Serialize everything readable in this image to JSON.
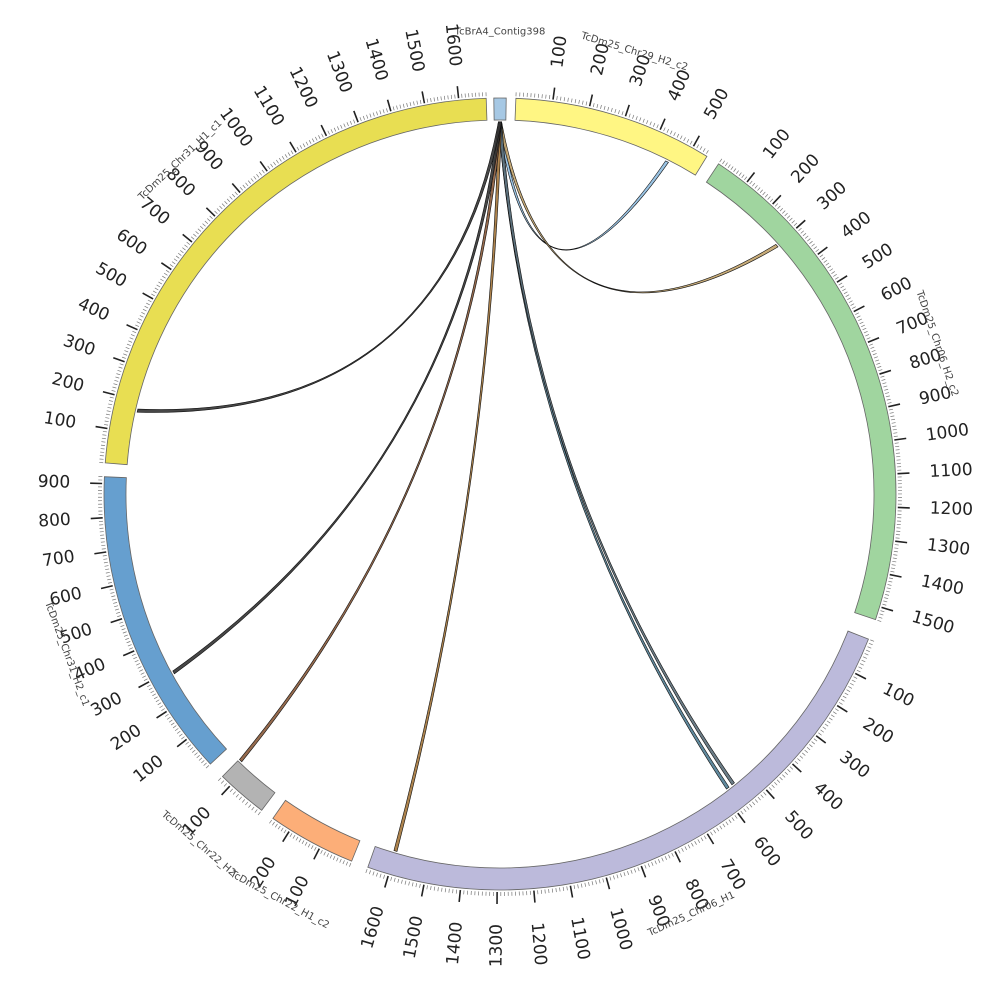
{
  "segments": [
    {
      "id": "contig398",
      "name": "TcBrA4_Contig398",
      "length": 20,
      "color": "#a6c8e4"
    },
    {
      "id": "chr29h2c2",
      "name": "TcDm25_Chr29_H2_c2",
      "length": 545,
      "color": "#fff683",
      "ticks": [
        "100",
        "200",
        "300",
        "400",
        "500"
      ]
    },
    {
      "id": "chr06h2c2",
      "name": "TcDm25_Chr06_H2_c2",
      "length": 1540,
      "color": "#a0d59f",
      "ticks": [
        "100",
        "200",
        "300",
        "400",
        "500",
        "600",
        "700",
        "800",
        "900",
        "1000",
        "1100",
        "1200",
        "1300",
        "1400",
        "1500"
      ]
    },
    {
      "id": "chr06h1",
      "name": "TcDm25_Chr06_H1",
      "length": 1660,
      "color": "#bcbadb",
      "ticks": [
        "100",
        "200",
        "300",
        "400",
        "500",
        "600",
        "700",
        "800",
        "900",
        "1000",
        "1100",
        "1200",
        "1300",
        "1400",
        "1500",
        "1600"
      ]
    },
    {
      "id": "chr22h1c2",
      "name": "TcDm25_Chr22_H1_c2",
      "length": 260,
      "color": "#fcae78",
      "ticks": [
        "100",
        "200"
      ]
    },
    {
      "id": "chr22h2",
      "name": "TcDm25_Chr22_H2",
      "length": 130,
      "color": "#b3b3b3",
      "ticks": [
        "100"
      ]
    },
    {
      "id": "chr31h2c1",
      "name": "TcDm25_Chr31_H2_c1",
      "length": 920,
      "color": "#669fcf",
      "ticks": [
        "100",
        "200",
        "300",
        "400",
        "500",
        "600",
        "700",
        "800",
        "900"
      ]
    },
    {
      "id": "chr31h1c1",
      "name": "TcDm25_Chr31_H1_c1",
      "length": 1680,
      "color": "#e8de52",
      "ticks": [
        "100",
        "200",
        "300",
        "400",
        "500",
        "600",
        "700",
        "800",
        "900",
        "1000",
        "1100",
        "1200",
        "1300",
        "1400",
        "1500",
        "1600"
      ]
    }
  ],
  "links": [
    {
      "source": "contig398",
      "target": "chr29h2c2",
      "target_pos": 455,
      "color": "#8fbde0"
    },
    {
      "source": "contig398",
      "target": "chr06h2c2",
      "target_pos": 300,
      "color": "#c2a36a"
    },
    {
      "source": "contig398",
      "target": "chr06h1",
      "target_pos": 580,
      "color": "#4f7c92"
    },
    {
      "source": "contig398",
      "target": "chr06h1",
      "target_pos": 560,
      "color": "#5c6f7a"
    },
    {
      "source": "contig398",
      "target": "chr06h1",
      "target_pos": 1600,
      "color": "#a4753a"
    },
    {
      "source": "contig398",
      "target": "chr22h2",
      "target_pos": 125,
      "color": "#8a5a3a"
    },
    {
      "source": "contig398",
      "target": "chr31h2c1",
      "target_pos": 290,
      "color": "#333333"
    },
    {
      "source": "contig398",
      "target": "chr31h1c1",
      "target_pos": 170,
      "color": "#333333"
    }
  ]
}
